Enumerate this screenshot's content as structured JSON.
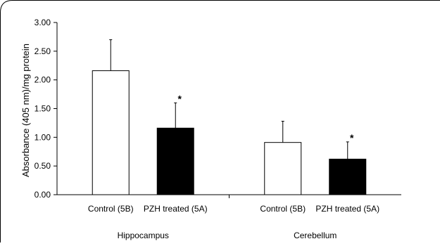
{
  "chart_data": {
    "type": "bar",
    "ylabel": "Absorbance (405 nm)/mg protein",
    "ylim": [
      0,
      3.0
    ],
    "yticks": [
      "0.00",
      "0.50",
      "1.00",
      "1.50",
      "2.00",
      "2.50",
      "3.00"
    ],
    "grid": false,
    "groups": [
      {
        "name": "Hippocampus",
        "bars": [
          {
            "label": "Control (5B)",
            "value": 2.16,
            "error": 0.54,
            "fill": "#ffffff",
            "annotation": ""
          },
          {
            "label": "PZH treated  (5A)",
            "value": 1.16,
            "error": 0.44,
            "fill": "#000000",
            "annotation": "*"
          }
        ]
      },
      {
        "name": "Cerebellum",
        "bars": [
          {
            "label": "Control (5B)",
            "value": 0.91,
            "error": 0.37,
            "fill": "#ffffff",
            "annotation": ""
          },
          {
            "label": "PZH treated  (5A)",
            "value": 0.62,
            "error": 0.3,
            "fill": "#000000",
            "annotation": "*"
          }
        ]
      }
    ]
  }
}
